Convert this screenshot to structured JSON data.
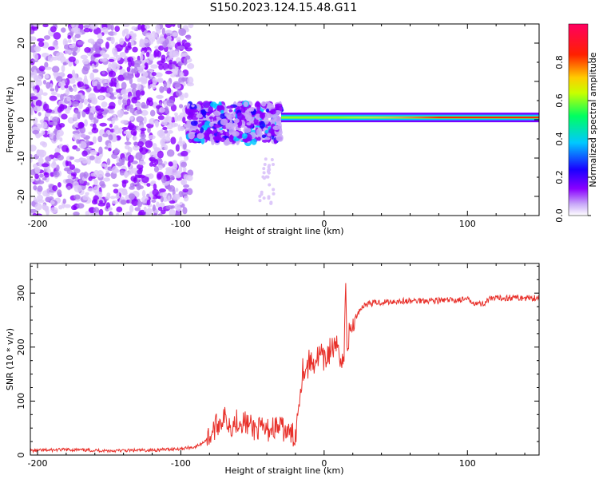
{
  "title": "S150.2023.124.15.48.G11",
  "chart_data": [
    {
      "type": "heatmap",
      "xlabel": "Height of straight line (km)",
      "ylabel": "Frequency (Hz)",
      "xlim": [
        -205,
        150
      ],
      "ylim": [
        -25,
        25
      ],
      "xticks": [
        -200,
        -100,
        0,
        100
      ],
      "yticks": [
        -20,
        -10,
        0,
        10,
        20
      ],
      "grid": false,
      "colorbar": {
        "label": "Normalized spectral amplitude",
        "range": [
          0,
          1
        ],
        "ticks": [
          "0.0",
          "0.2",
          "0.4",
          "0.6",
          "0.8"
        ],
        "colormap": [
          "#ffffff",
          "#c8a8f8",
          "#8a00ff",
          "#1a00ff",
          "#00c8ff",
          "#00ff60",
          "#c8ff00",
          "#ffcc00",
          "#ff2000",
          "#ff0060"
        ]
      },
      "description_regions": [
        {
          "x": [
            -205,
            -95
          ],
          "freq": [
            -25,
            25
          ],
          "amplitude": "low, diffuse noise"
        },
        {
          "x": [
            -95,
            -30
          ],
          "freq": [
            -10,
            8
          ],
          "amplitude": "medium, scattered"
        },
        {
          "x": [
            -30,
            150
          ],
          "freq": [
            -1,
            2
          ],
          "amplitude": "high, narrow line near 0 Hz"
        }
      ]
    },
    {
      "type": "line",
      "xlabel": "Height of straight line (km)",
      "ylabel": "SNR (10 * v/v)",
      "xlim": [
        -205,
        150
      ],
      "ylim": [
        0,
        355
      ],
      "xticks": [
        -200,
        -100,
        0,
        100
      ],
      "yticks": [
        0,
        100,
        200,
        300
      ],
      "grid": false,
      "series": [
        {
          "color": "#e8302a",
          "x": [
            -205,
            -180,
            -150,
            -120,
            -100,
            -90,
            -85,
            -80,
            -75,
            -70,
            -65,
            -60,
            -55,
            -50,
            -45,
            -40,
            -35,
            -30,
            -25,
            -20,
            -18,
            -15,
            -12,
            -10,
            -8,
            -5,
            -2,
            0,
            3,
            6,
            8,
            10,
            12,
            14,
            15,
            16,
            18,
            20,
            22,
            25,
            28,
            30,
            35,
            40,
            50,
            60,
            70,
            80,
            90,
            100,
            105,
            110,
            115,
            120,
            130,
            140,
            150
          ],
          "values": [
            8,
            10,
            8,
            9,
            12,
            15,
            22,
            35,
            55,
            70,
            55,
            65,
            60,
            50,
            48,
            45,
            52,
            50,
            40,
            35,
            90,
            160,
            160,
            175,
            170,
            180,
            185,
            170,
            190,
            200,
            190,
            210,
            170,
            180,
            330,
            200,
            230,
            240,
            255,
            270,
            278,
            280,
            282,
            283,
            285,
            285,
            287,
            286,
            287,
            288,
            283,
            279,
            288,
            290,
            292,
            291,
            292
          ]
        }
      ]
    }
  ]
}
